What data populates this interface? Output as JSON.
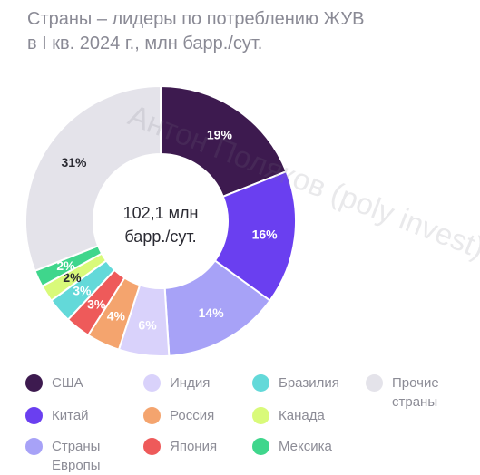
{
  "title_line1": "Страны – лидеры по потреблению ЖУВ",
  "title_line2": "в I кв. 2024 г., млн барр./сут.",
  "watermark": "Антон Поляков (poly invest)",
  "center": {
    "line1": "102,1 млн",
    "line2": "барр./сут."
  },
  "chart_data": {
    "type": "pie",
    "title": "Страны – лидеры по потреблению ЖУВ в I кв. 2024 г., млн барр./сут.",
    "total_label": "102,1 млн барр./сут.",
    "legend_position": "bottom",
    "slices": [
      {
        "name": "США",
        "value": 19,
        "label": "19%",
        "color": "#3d1a4f",
        "label_color": "#ffffff"
      },
      {
        "name": "Китай",
        "value": 16,
        "label": "16%",
        "color": "#6a3ff0",
        "label_color": "#ffffff"
      },
      {
        "name": "Страны Европы",
        "value": 14,
        "label": "14%",
        "color": "#a7a2f7",
        "label_color": "#ffffff"
      },
      {
        "name": "Индия",
        "value": 6,
        "label": "6%",
        "color": "#d9d2fb",
        "label_color": "#ffffff"
      },
      {
        "name": "Россия",
        "value": 4,
        "label": "4%",
        "color": "#f4a46e",
        "label_color": "#ffffff"
      },
      {
        "name": "Япония",
        "value": 3,
        "label": "3%",
        "color": "#ee5a5a",
        "label_color": "#ffffff"
      },
      {
        "name": "Бразилия",
        "value": 3,
        "label": "3%",
        "color": "#63d9d9",
        "label_color": "#ffffff"
      },
      {
        "name": "Канада",
        "value": 2,
        "label": "2%",
        "color": "#d9fa7a",
        "label_color": "#2a2a32"
      },
      {
        "name": "Мексика",
        "value": 2,
        "label": "2%",
        "color": "#3fd68c",
        "label_color": "#ffffff"
      },
      {
        "name": "Прочие страны",
        "value": 31,
        "label": "31%",
        "color": "#e4e3ea",
        "label_color": "#2a2a32"
      }
    ]
  }
}
